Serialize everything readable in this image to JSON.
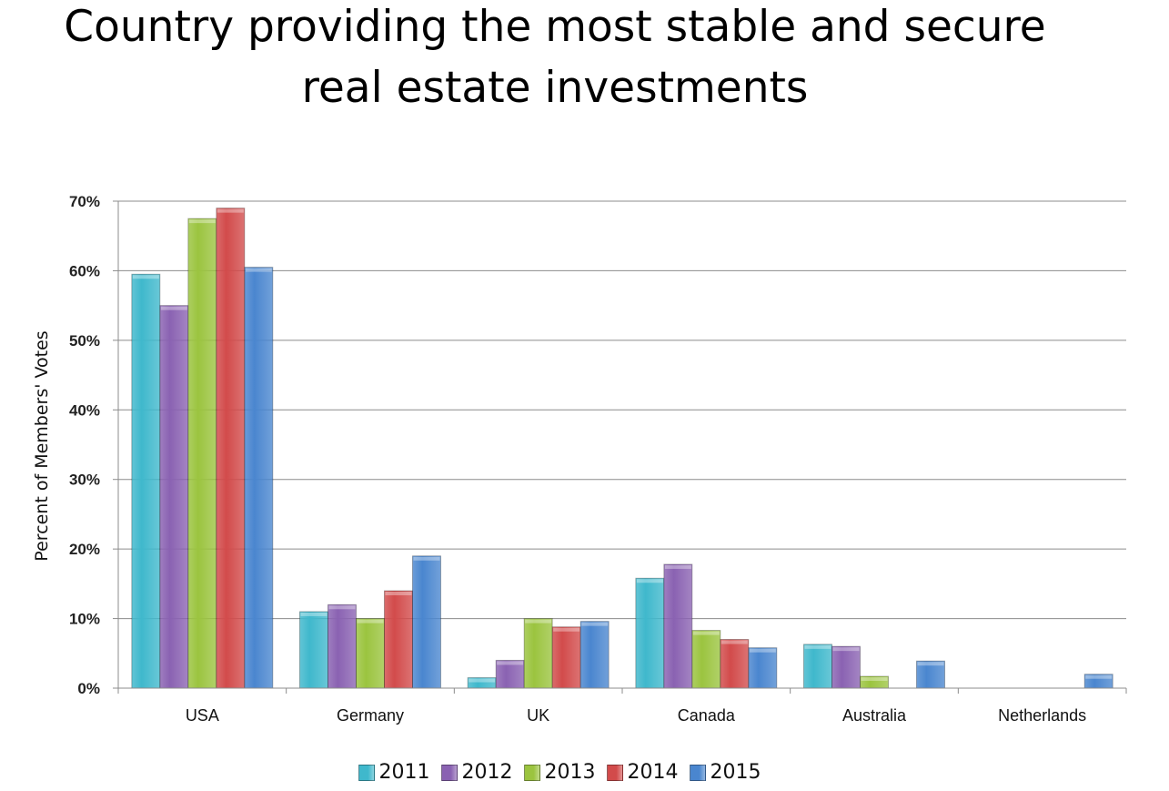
{
  "title": {
    "line1": "Country providing the most stable and secure",
    "line2": "real estate investments"
  },
  "chart_data": {
    "type": "bar",
    "title": "Country providing the most stable and secure real estate investments",
    "xlabel": "",
    "ylabel": "Percent of Members' Votes",
    "ylim": [
      0,
      70
    ],
    "yticks": [
      0,
      10,
      20,
      30,
      40,
      50,
      60,
      70
    ],
    "ytick_labels": [
      "0%",
      "10%",
      "20%",
      "30%",
      "40%",
      "50%",
      "60%",
      "70%"
    ],
    "grid": true,
    "legend_position": "bottom",
    "categories": [
      "USA",
      "Germany",
      "UK",
      "Canada",
      "Australia",
      "Netherlands"
    ],
    "series": [
      {
        "name": "2011",
        "color": "#3fb8cc",
        "values": [
          59.5,
          11,
          1.5,
          15.8,
          6.3,
          0
        ]
      },
      {
        "name": "2012",
        "color": "#8a62b2",
        "values": [
          55,
          12,
          4,
          17.8,
          6,
          0
        ]
      },
      {
        "name": "2013",
        "color": "#9bc43f",
        "values": [
          67.5,
          10,
          10,
          8.3,
          1.7,
          0
        ]
      },
      {
        "name": "2014",
        "color": "#d24b4b",
        "values": [
          69,
          14,
          8.8,
          7,
          0,
          0
        ]
      },
      {
        "name": "2015",
        "color": "#4a86cf",
        "values": [
          60.5,
          19,
          9.6,
          5.8,
          3.9,
          2
        ]
      }
    ]
  }
}
